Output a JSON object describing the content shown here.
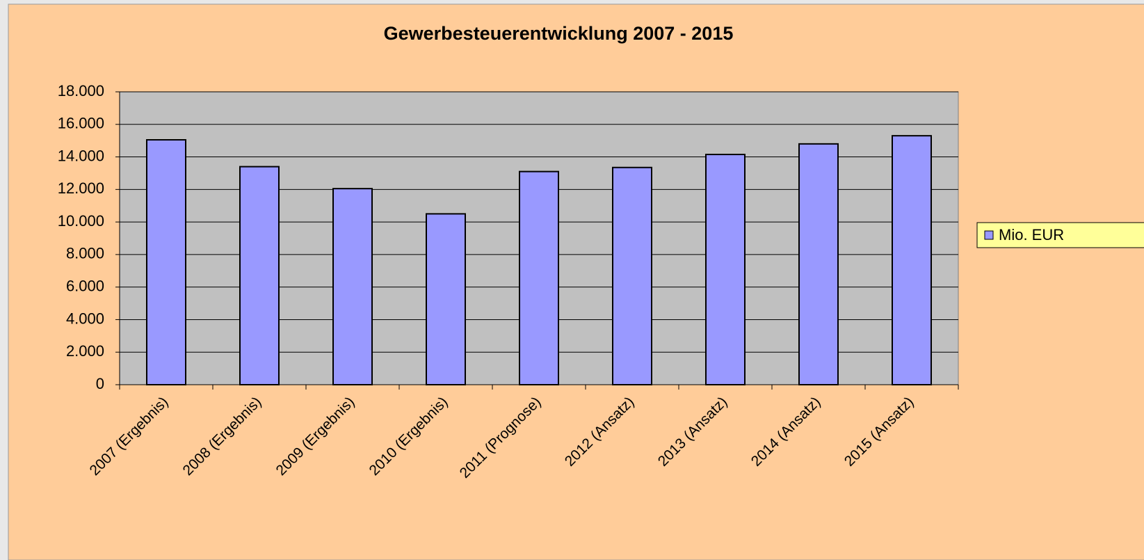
{
  "chart_data": {
    "type": "bar",
    "title": "Gewerbesteuerentwicklung 2007 - 2015",
    "categories": [
      "2007 (Ergebnis)",
      "2008 (Ergebnis)",
      "2009 (Ergebnis)",
      "2010 (Ergebnis)",
      "2011 (Prognose)",
      "2012 (Ansatz)",
      "2013 (Ansatz)",
      "2014 (Ansatz)",
      "2015 (Ansatz)"
    ],
    "series": [
      {
        "name": "Mio. EUR",
        "color": "#9999ff",
        "values": [
          15050,
          13400,
          12050,
          10500,
          13100,
          13350,
          14150,
          14800,
          15300
        ]
      }
    ],
    "ylim": [
      0,
      18000
    ],
    "yticks": [
      0,
      {
        "value": 2000,
        "label": "2.000"
      },
      {
        "value": 4000,
        "label": "4.000"
      },
      {
        "value": 6000,
        "label": "6.000"
      },
      {
        "value": 8000,
        "label": "8.000"
      },
      {
        "value": 10000,
        "label": "10.000"
      },
      {
        "value": 12000,
        "label": "12.000"
      },
      {
        "value": 14000,
        "label": "14.000"
      },
      {
        "value": 16000,
        "label": "16.000"
      },
      {
        "value": 18000,
        "label": "18.000"
      }
    ],
    "grid": true,
    "legend": "right"
  }
}
